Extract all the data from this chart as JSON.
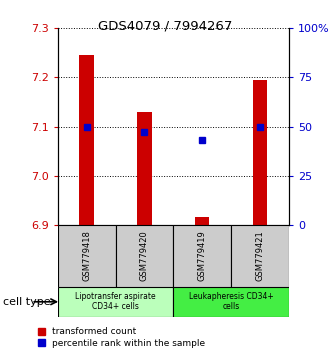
{
  "title": "GDS4079 / 7994267",
  "samples": [
    "GSM779418",
    "GSM779420",
    "GSM779419",
    "GSM779421"
  ],
  "red_values": [
    7.245,
    7.13,
    6.915,
    7.195
  ],
  "blue_values_pct": [
    50,
    47,
    43,
    50
  ],
  "ylim_left": [
    6.9,
    7.3
  ],
  "ylim_right": [
    0,
    100
  ],
  "yticks_left": [
    6.9,
    7.0,
    7.1,
    7.2,
    7.3
  ],
  "yticks_right": [
    0,
    25,
    50,
    75,
    100
  ],
  "ytick_labels_right": [
    "0",
    "25",
    "50",
    "75",
    "100%"
  ],
  "bar_bottom": 6.9,
  "bar_width": 0.25,
  "cell_types": [
    {
      "label": "Lipotransfer aspirate\nCD34+ cells",
      "color": "#bbffbb"
    },
    {
      "label": "Leukapheresis CD34+\ncells",
      "color": "#44ee44"
    }
  ],
  "sample_box_color": "#cccccc",
  "red_color": "#cc0000",
  "blue_color": "#0000cc",
  "left_axis_color": "#cc0000",
  "right_axis_color": "#0000cc",
  "legend_red_label": "transformed count",
  "legend_blue_label": "percentile rank within the sample",
  "cell_type_label": "cell type",
  "background_color": "#ffffff"
}
